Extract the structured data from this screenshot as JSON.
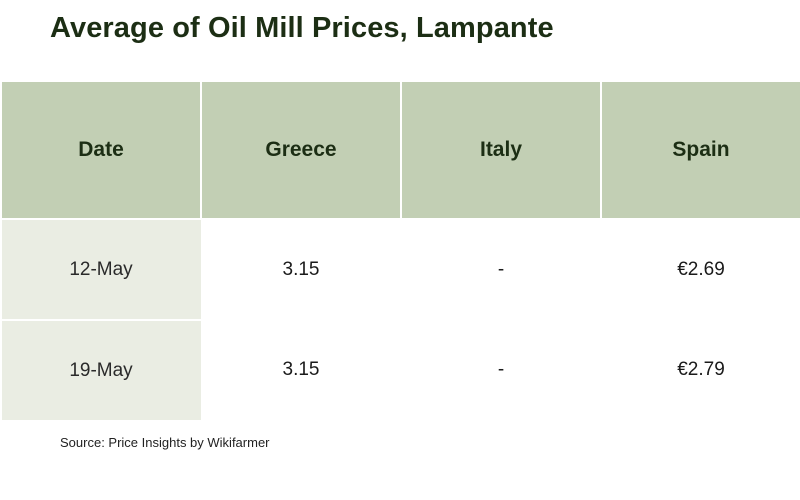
{
  "title": "Average of Oil Mill Prices, Lampante",
  "source": "Source: Price Insights by Wikifarmer",
  "colors": {
    "title": "#1c2e14",
    "header_bg": "#c2cfb4",
    "date_col_bg": "#eaede3"
  },
  "chart_data": {
    "type": "table",
    "title": "Average of Oil Mill Prices, Lampante",
    "columns": [
      "Date",
      "Greece",
      "Italy",
      "Spain"
    ],
    "rows": [
      [
        "12-May",
        "3.15",
        "-",
        "€2.69"
      ],
      [
        "19-May",
        "3.15",
        "-",
        "€2.79"
      ]
    ]
  }
}
